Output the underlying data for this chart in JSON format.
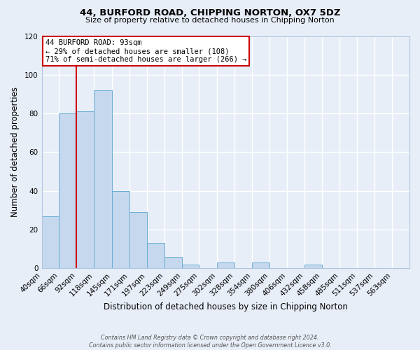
{
  "title": "44, BURFORD ROAD, CHIPPING NORTON, OX7 5DZ",
  "subtitle": "Size of property relative to detached houses in Chipping Norton",
  "xlabel": "Distribution of detached houses by size in Chipping Norton",
  "ylabel": "Number of detached properties",
  "bar_values": [
    27,
    80,
    81,
    92,
    40,
    29,
    13,
    6,
    2,
    0,
    3,
    0,
    3,
    0,
    0,
    2,
    0,
    0,
    0,
    0,
    0
  ],
  "bin_labels": [
    "40sqm",
    "66sqm",
    "92sqm",
    "118sqm",
    "145sqm",
    "171sqm",
    "197sqm",
    "223sqm",
    "249sqm",
    "275sqm",
    "302sqm",
    "328sqm",
    "354sqm",
    "380sqm",
    "406sqm",
    "432sqm",
    "458sqm",
    "485sqm",
    "511sqm",
    "537sqm",
    "563sqm"
  ],
  "bar_color": "#c5d8ed",
  "bar_edge_color": "#6aaed6",
  "vline_x": 92,
  "vline_color": "#cc0000",
  "ylim": [
    0,
    120
  ],
  "yticks": [
    0,
    20,
    40,
    60,
    80,
    100,
    120
  ],
  "annotation_title": "44 BURFORD ROAD: 93sqm",
  "annotation_line1": "← 29% of detached houses are smaller (108)",
  "annotation_line2": "71% of semi-detached houses are larger (266) →",
  "annotation_box_color": "#ffffff",
  "annotation_border_color": "#cc0000",
  "footer1": "Contains HM Land Registry data © Crown copyright and database right 2024.",
  "footer2": "Contains public sector information licensed under the Open Government Licence v3.0.",
  "bg_color": "#e8eef8",
  "plot_bg_color": "#e8eef8",
  "grid_color": "#ffffff",
  "bin_edges": [
    40,
    66,
    92,
    118,
    145,
    171,
    197,
    223,
    249,
    275,
    302,
    328,
    354,
    380,
    406,
    432,
    458,
    485,
    511,
    537,
    563,
    589
  ]
}
